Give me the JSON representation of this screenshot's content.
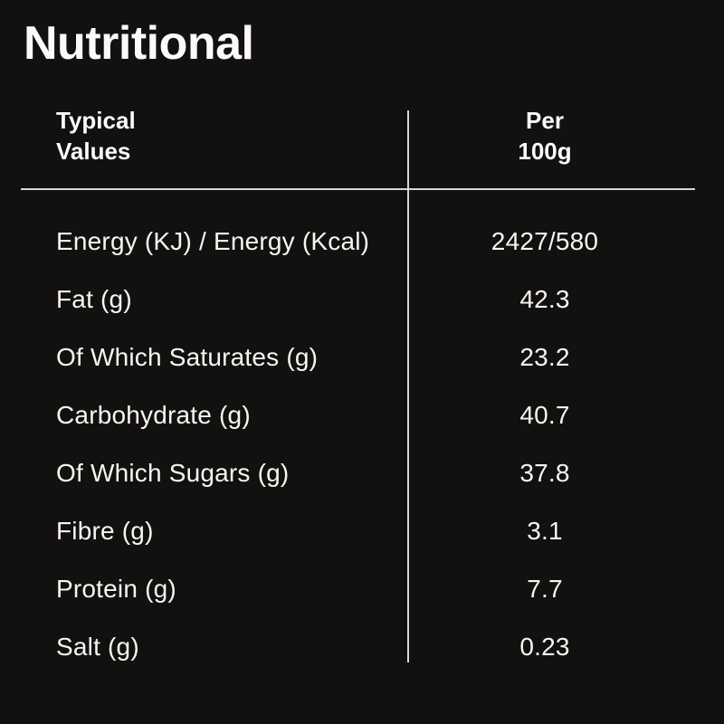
{
  "page": {
    "background_color": "#131110",
    "text_color": "#f7f5f2",
    "divider_color": "#d9d7d4"
  },
  "title": "Nutritional",
  "table": {
    "header": {
      "col_label_line1": "Typical",
      "col_label_line2": "Values",
      "col_value_line1": "Per",
      "col_value_line2": "100g"
    },
    "rows": [
      {
        "label": "Energy (KJ) / Energy (Kcal)",
        "value": "2427/580"
      },
      {
        "label": "Fat (g)",
        "value": "42.3"
      },
      {
        "label": "Of Which Saturates (g)",
        "value": "23.2"
      },
      {
        "label": "Carbohydrate (g)",
        "value": "40.7"
      },
      {
        "label": "Of Which Sugars (g)",
        "value": "37.8"
      },
      {
        "label": "Fibre (g)",
        "value": "3.1"
      },
      {
        "label": "Protein (g)",
        "value": "7.7"
      },
      {
        "label": "Salt (g)",
        "value": "0.23"
      }
    ]
  }
}
